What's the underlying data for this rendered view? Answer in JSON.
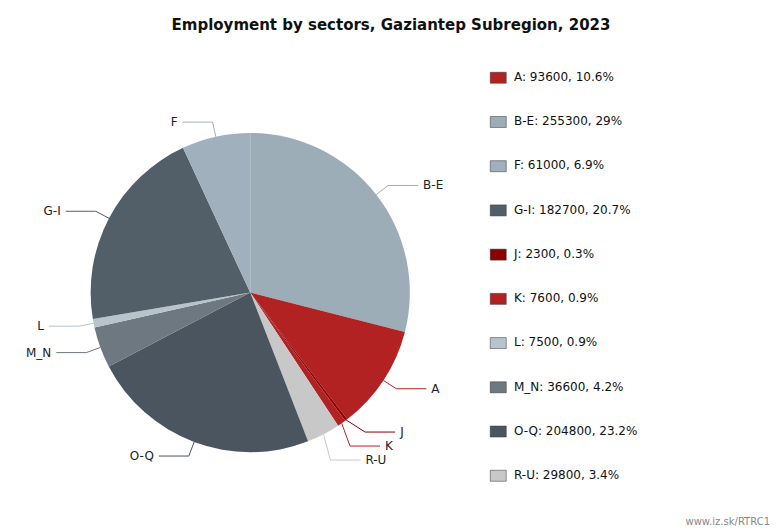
{
  "chart_data": {
    "type": "pie",
    "title": "Employment by sectors, Gaziantep Subregion, 2023",
    "categories": [
      "B-E",
      "A",
      "J",
      "K",
      "R-U",
      "O-Q",
      "M_N",
      "L",
      "G-I",
      "F"
    ],
    "values": [
      255300,
      93600,
      2300,
      7600,
      29800,
      204800,
      36600,
      7500,
      182700,
      61000
    ],
    "colors": [
      "#9dadb8",
      "#b22222",
      "#8b0000",
      "#b22222",
      "#c8c8c8",
      "#4a5560",
      "#6e7880",
      "#b8c4cc",
      "#525f68",
      "#a0b0bc"
    ],
    "legend": "right",
    "legend_labels": [
      "A: 93600, 10.6%",
      "B-E: 255300, 29%",
      "F: 61000, 6.9%",
      "G-I: 182700, 20.7%",
      "J: 2300, 0.3%",
      "K: 7600, 0.9%",
      "L: 7500, 0.9%",
      "M_N: 36600, 4.2%",
      "O-Q: 204800, 23.2%",
      "R-U: 29800, 3.4%"
    ],
    "legend_colors": [
      "#b22222",
      "#9dadb8",
      "#a0b0bc",
      "#525f68",
      "#8b0000",
      "#b22222",
      "#b8c4cc",
      "#6e7880",
      "#4a5560",
      "#c8c8c8"
    ],
    "annotations": [
      "www.iz.sk/RTRC1"
    ]
  }
}
